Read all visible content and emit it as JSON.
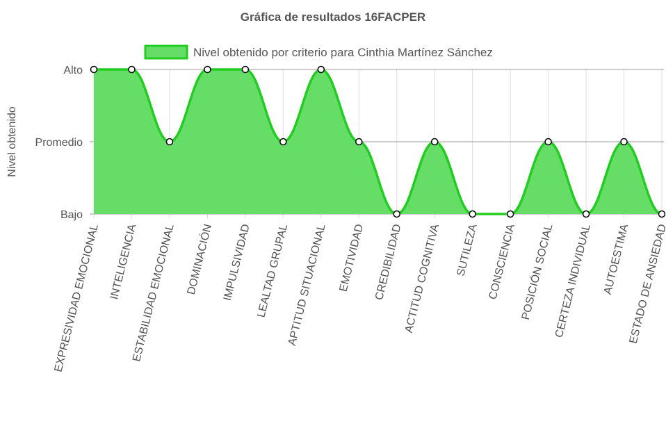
{
  "chart_data": {
    "type": "area",
    "title": "Gráfica de resultados 16FACPER",
    "ylabel": "Nivel obtenido",
    "xlabel": "",
    "legend_position": "top",
    "grid": true,
    "y_levels": [
      "Bajo",
      "Promedio",
      "Alto"
    ],
    "ylim": [
      0,
      2
    ],
    "categories": [
      "EXPRESIVIDAD EMOCIONAL",
      "INTELIGENCIA",
      "ESTABILIDAD EMOCIONAL",
      "DOMINACIÓN",
      "IMPULSIVIDAD",
      "LEALTAD GRUPAL",
      "APTITUD SITUACIONAL",
      "EMOTIVIDAD",
      "CREDIBILIDAD",
      "ACTITUD COGNITIVA",
      "SUTILEZA",
      "CONSCIENCIA",
      "POSICIÓN SOCIAL",
      "CERTEZA INDIVIDUAL",
      "AUTOESTIMA",
      "ESTADO DE ANSIEDAD"
    ],
    "series": [
      {
        "name": "Nivel obtenido por criterio para Cinthia Martínez Sánchez",
        "values": [
          2,
          2,
          1,
          2,
          2,
          1,
          2,
          1,
          0,
          1,
          0,
          0,
          1,
          0,
          1,
          0
        ]
      }
    ],
    "colors": {
      "fill": "#66dd66",
      "line": "#22cc22",
      "point_fill": "#ffffff",
      "point_stroke": "#000000",
      "grid": "#dddddd",
      "major_grid": "#999999"
    }
  }
}
